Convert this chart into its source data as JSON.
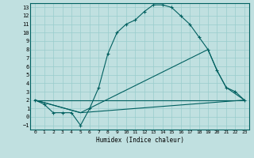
{
  "title": "",
  "xlabel": "Humidex (Indice chaleur)",
  "bg_color": "#c0e0e0",
  "grid_color": "#99cccc",
  "line_color": "#006060",
  "xlim": [
    -0.5,
    23.5
  ],
  "ylim": [
    -1.5,
    13.5
  ],
  "xticks": [
    0,
    1,
    2,
    3,
    4,
    5,
    6,
    7,
    8,
    9,
    10,
    11,
    12,
    13,
    14,
    15,
    16,
    17,
    18,
    19,
    20,
    21,
    22,
    23
  ],
  "yticks": [
    -1,
    0,
    1,
    2,
    3,
    4,
    5,
    6,
    7,
    8,
    9,
    10,
    11,
    12,
    13
  ],
  "curve_x": [
    0,
    1,
    2,
    3,
    4,
    5,
    6,
    7,
    8,
    9,
    10,
    11,
    12,
    13,
    14,
    15,
    16,
    17,
    18,
    19,
    20,
    21,
    22,
    23
  ],
  "curve_y": [
    2,
    1.5,
    0.5,
    0.5,
    0.5,
    -1,
    1,
    3.5,
    7.5,
    10,
    11,
    11.5,
    12.5,
    13.3,
    13.3,
    13,
    12,
    11,
    9.5,
    8,
    5.5,
    3.5,
    3,
    2
  ],
  "line1_x": [
    0,
    23
  ],
  "line1_y": [
    2,
    2
  ],
  "line2_x": [
    0,
    5,
    23
  ],
  "line2_y": [
    2,
    0.5,
    2
  ],
  "line3_x": [
    0,
    5,
    19,
    20,
    21,
    23
  ],
  "line3_y": [
    2,
    0.5,
    8,
    5.5,
    3.5,
    2
  ]
}
